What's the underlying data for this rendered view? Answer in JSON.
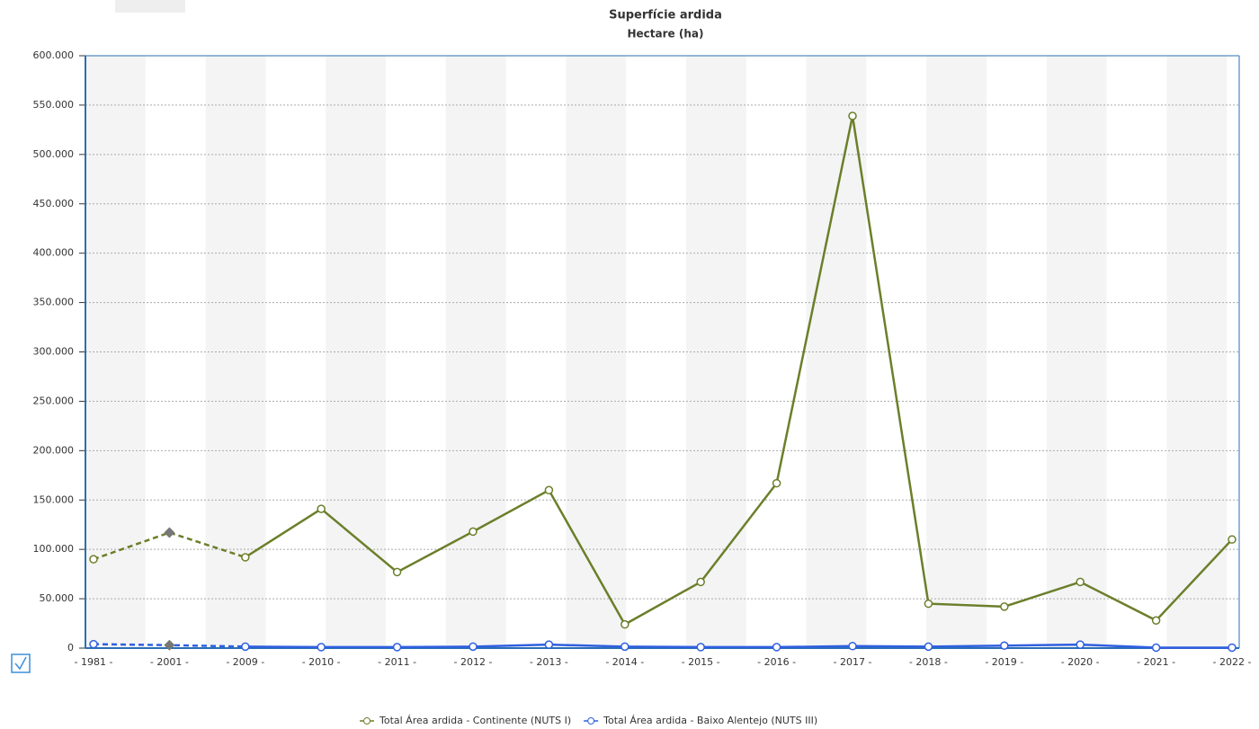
{
  "chart_data": {
    "type": "line",
    "title": "Superfície ardida",
    "subtitle": "Hectare (ha)",
    "categories": [
      "- 1981 -",
      "- 2001 -",
      "- 2009 -",
      "- 2010 -",
      "- 2011 -",
      "- 2012 -",
      "- 2013 -",
      "- 2014 -",
      "- 2015 -",
      "- 2016 -",
      "- 2017 -",
      "- 2018 -",
      "- 2019 -",
      "- 2020 -",
      "- 2021 -",
      "- 2022 -"
    ],
    "series": [
      {
        "name": "Total Área ardida - Continente (NUTS I)",
        "color": "#6b7f2a",
        "values": [
          90000,
          117000,
          92000,
          141000,
          77000,
          118000,
          160000,
          24000,
          67000,
          167000,
          539000,
          45000,
          42000,
          67000,
          28000,
          110000
        ]
      },
      {
        "name": "Total Área ardida - Baixo Alentejo (NUTS III)",
        "color": "#2f5fe0",
        "values": [
          4000,
          3000,
          1500,
          1000,
          1000,
          1500,
          3500,
          1500,
          1000,
          1000,
          2000,
          1500,
          2500,
          3500,
          500,
          500
        ]
      }
    ],
    "dashed_points": 3,
    "ylim": [
      0,
      600000
    ],
    "yticks": [
      0,
      {
        "value": 50000,
        "label": "50.000"
      },
      {
        "value": 100000,
        "label": "100.000"
      },
      {
        "value": 150000,
        "label": "150.000"
      },
      {
        "value": 200000,
        "label": "200.000"
      },
      {
        "value": 250000,
        "label": "250.000"
      },
      {
        "value": 300000,
        "label": "300.000"
      },
      {
        "value": 350000,
        "label": "350.000"
      },
      {
        "value": 400000,
        "label": "400.000"
      },
      {
        "value": 450000,
        "label": "450.000"
      },
      {
        "value": 500000,
        "label": "500.000"
      },
      {
        "value": 550000,
        "label": "550.000"
      },
      {
        "value": 600000,
        "label": "600.000"
      }
    ],
    "grid": true
  }
}
